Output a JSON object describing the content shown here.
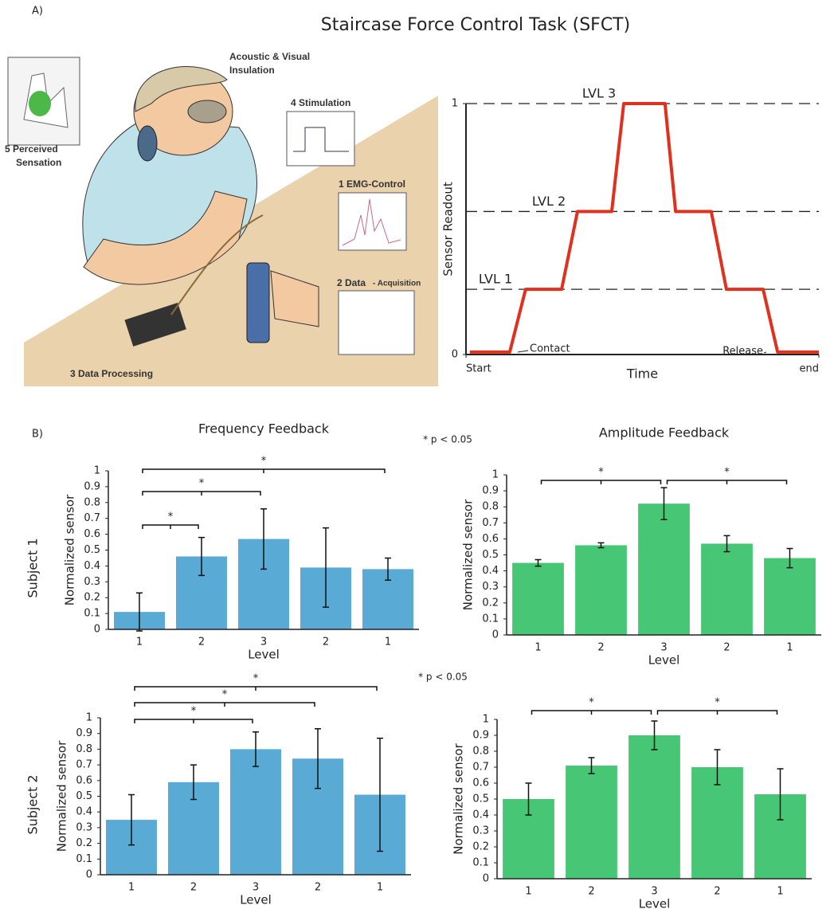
{
  "panel_a_label": "A)",
  "panel_b_label": "B)",
  "title": "Staircase Force Control Task (SFCT)",
  "illustration": {
    "labels": [
      "Acoustic & Visual",
      "Insulation",
      "4 Stimulation",
      "5 Perceived",
      "Sensation",
      "1 EMG-Control",
      "2 Data",
      "- Acquisition",
      "3 Data Processing"
    ]
  },
  "row_labels": [
    "Subject 1",
    "Subject 2"
  ],
  "significance_notes": [
    "* p < 0.05",
    "* p < 0.05"
  ],
  "chart_data": [
    {
      "type": "line",
      "xlabel": "Time",
      "ylabel": "Sensor Readout",
      "x": [
        1.1,
        12.4,
        16.9,
        27.1,
        31.6,
        41.3,
        44.7,
        56.4,
        59.4,
        69.5,
        73.8,
        84.2,
        88.3,
        100
      ],
      "values": [
        0.01,
        0.01,
        0.26,
        0.26,
        0.57,
        0.57,
        1,
        1,
        0.57,
        0.57,
        0.26,
        0.26,
        0.01,
        0.01
      ],
      "color": "#e0301e",
      "xlim": [
        0,
        100
      ],
      "xticks": [
        {
          "value": 0,
          "label": "Start"
        },
        {
          "value": 100,
          "label": "end"
        }
      ],
      "ylim": [
        0,
        1
      ],
      "yticks": [
        0,
        1
      ],
      "levels": [
        {
          "label": "LVL 1",
          "value": 0.26
        },
        {
          "label": "LVL 2",
          "value": 0.57
        },
        {
          "label": "LVL 3",
          "value": 1
        }
      ],
      "annotations": [
        "Contact",
        "Release"
      ]
    },
    {
      "type": "bar",
      "title": "Frequency Feedback",
      "xlabel": "Level",
      "ylabel": "Normalized sensor",
      "categories": [
        "1",
        "2",
        "3",
        "2",
        "1"
      ],
      "values": [
        0.11,
        0.46,
        0.57,
        0.39,
        0.38
      ],
      "errors": [
        0.12,
        0.12,
        0.19,
        0.25,
        0.07
      ],
      "color": "#5aaad6",
      "ylim": [
        0,
        1
      ],
      "yticks": [
        0,
        0.1,
        0.2,
        0.3,
        0.4,
        0.5,
        0.6,
        0.7,
        0.8,
        0.9,
        1
      ],
      "brackets": [
        {
          "from": 0,
          "to": 1,
          "label": "*"
        },
        {
          "from": 0,
          "to": 2,
          "label": "*"
        },
        {
          "from": 0,
          "to": 4,
          "label": "*"
        }
      ]
    },
    {
      "type": "bar",
      "title": "Amplitude Feedback",
      "xlabel": "Level",
      "ylabel": "Normalized sensor",
      "categories": [
        "1",
        "2",
        "3",
        "2",
        "1"
      ],
      "values": [
        0.45,
        0.56,
        0.82,
        0.57,
        0.48
      ],
      "errors": [
        0.02,
        0.015,
        0.1,
        0.05,
        0.06
      ],
      "color": "#47c675",
      "ylim": [
        0,
        1
      ],
      "yticks": [
        0,
        0.1,
        0.2,
        0.3,
        0.4,
        0.5,
        0.6,
        0.7,
        0.8,
        0.9,
        1
      ],
      "brackets": [
        {
          "from": 0,
          "to": 2,
          "label": "*"
        },
        {
          "from": 2,
          "to": 4,
          "label": "*"
        }
      ]
    },
    {
      "type": "bar",
      "xlabel": "Level",
      "ylabel": "Normalized sensor",
      "categories": [
        "1",
        "2",
        "3",
        "2",
        "1"
      ],
      "values": [
        0.35,
        0.59,
        0.8,
        0.74,
        0.51
      ],
      "errors": [
        0.16,
        0.11,
        0.11,
        0.19,
        0.36
      ],
      "color": "#5aaad6",
      "ylim": [
        0,
        1
      ],
      "yticks": [
        0,
        0.1,
        0.2,
        0.3,
        0.4,
        0.5,
        0.6,
        0.7,
        0.8,
        0.9,
        1
      ],
      "brackets": [
        {
          "from": 0,
          "to": 2,
          "label": "*"
        },
        {
          "from": 0,
          "to": 3,
          "label": "*"
        },
        {
          "from": 0,
          "to": 4,
          "label": "*"
        }
      ]
    },
    {
      "type": "bar",
      "xlabel": "Level",
      "ylabel": "Normalized sensor",
      "categories": [
        "1",
        "2",
        "3",
        "2",
        "1"
      ],
      "values": [
        0.5,
        0.71,
        0.9,
        0.7,
        0.53
      ],
      "errors": [
        0.1,
        0.05,
        0.09,
        0.11,
        0.16
      ],
      "color": "#47c675",
      "ylim": [
        0,
        1
      ],
      "yticks": [
        0,
        0.1,
        0.2,
        0.3,
        0.4,
        0.5,
        0.6,
        0.7,
        0.8,
        0.9,
        1
      ],
      "brackets": [
        {
          "from": 0,
          "to": 2,
          "label": "*"
        },
        {
          "from": 2,
          "to": 4,
          "label": "*"
        }
      ]
    }
  ]
}
